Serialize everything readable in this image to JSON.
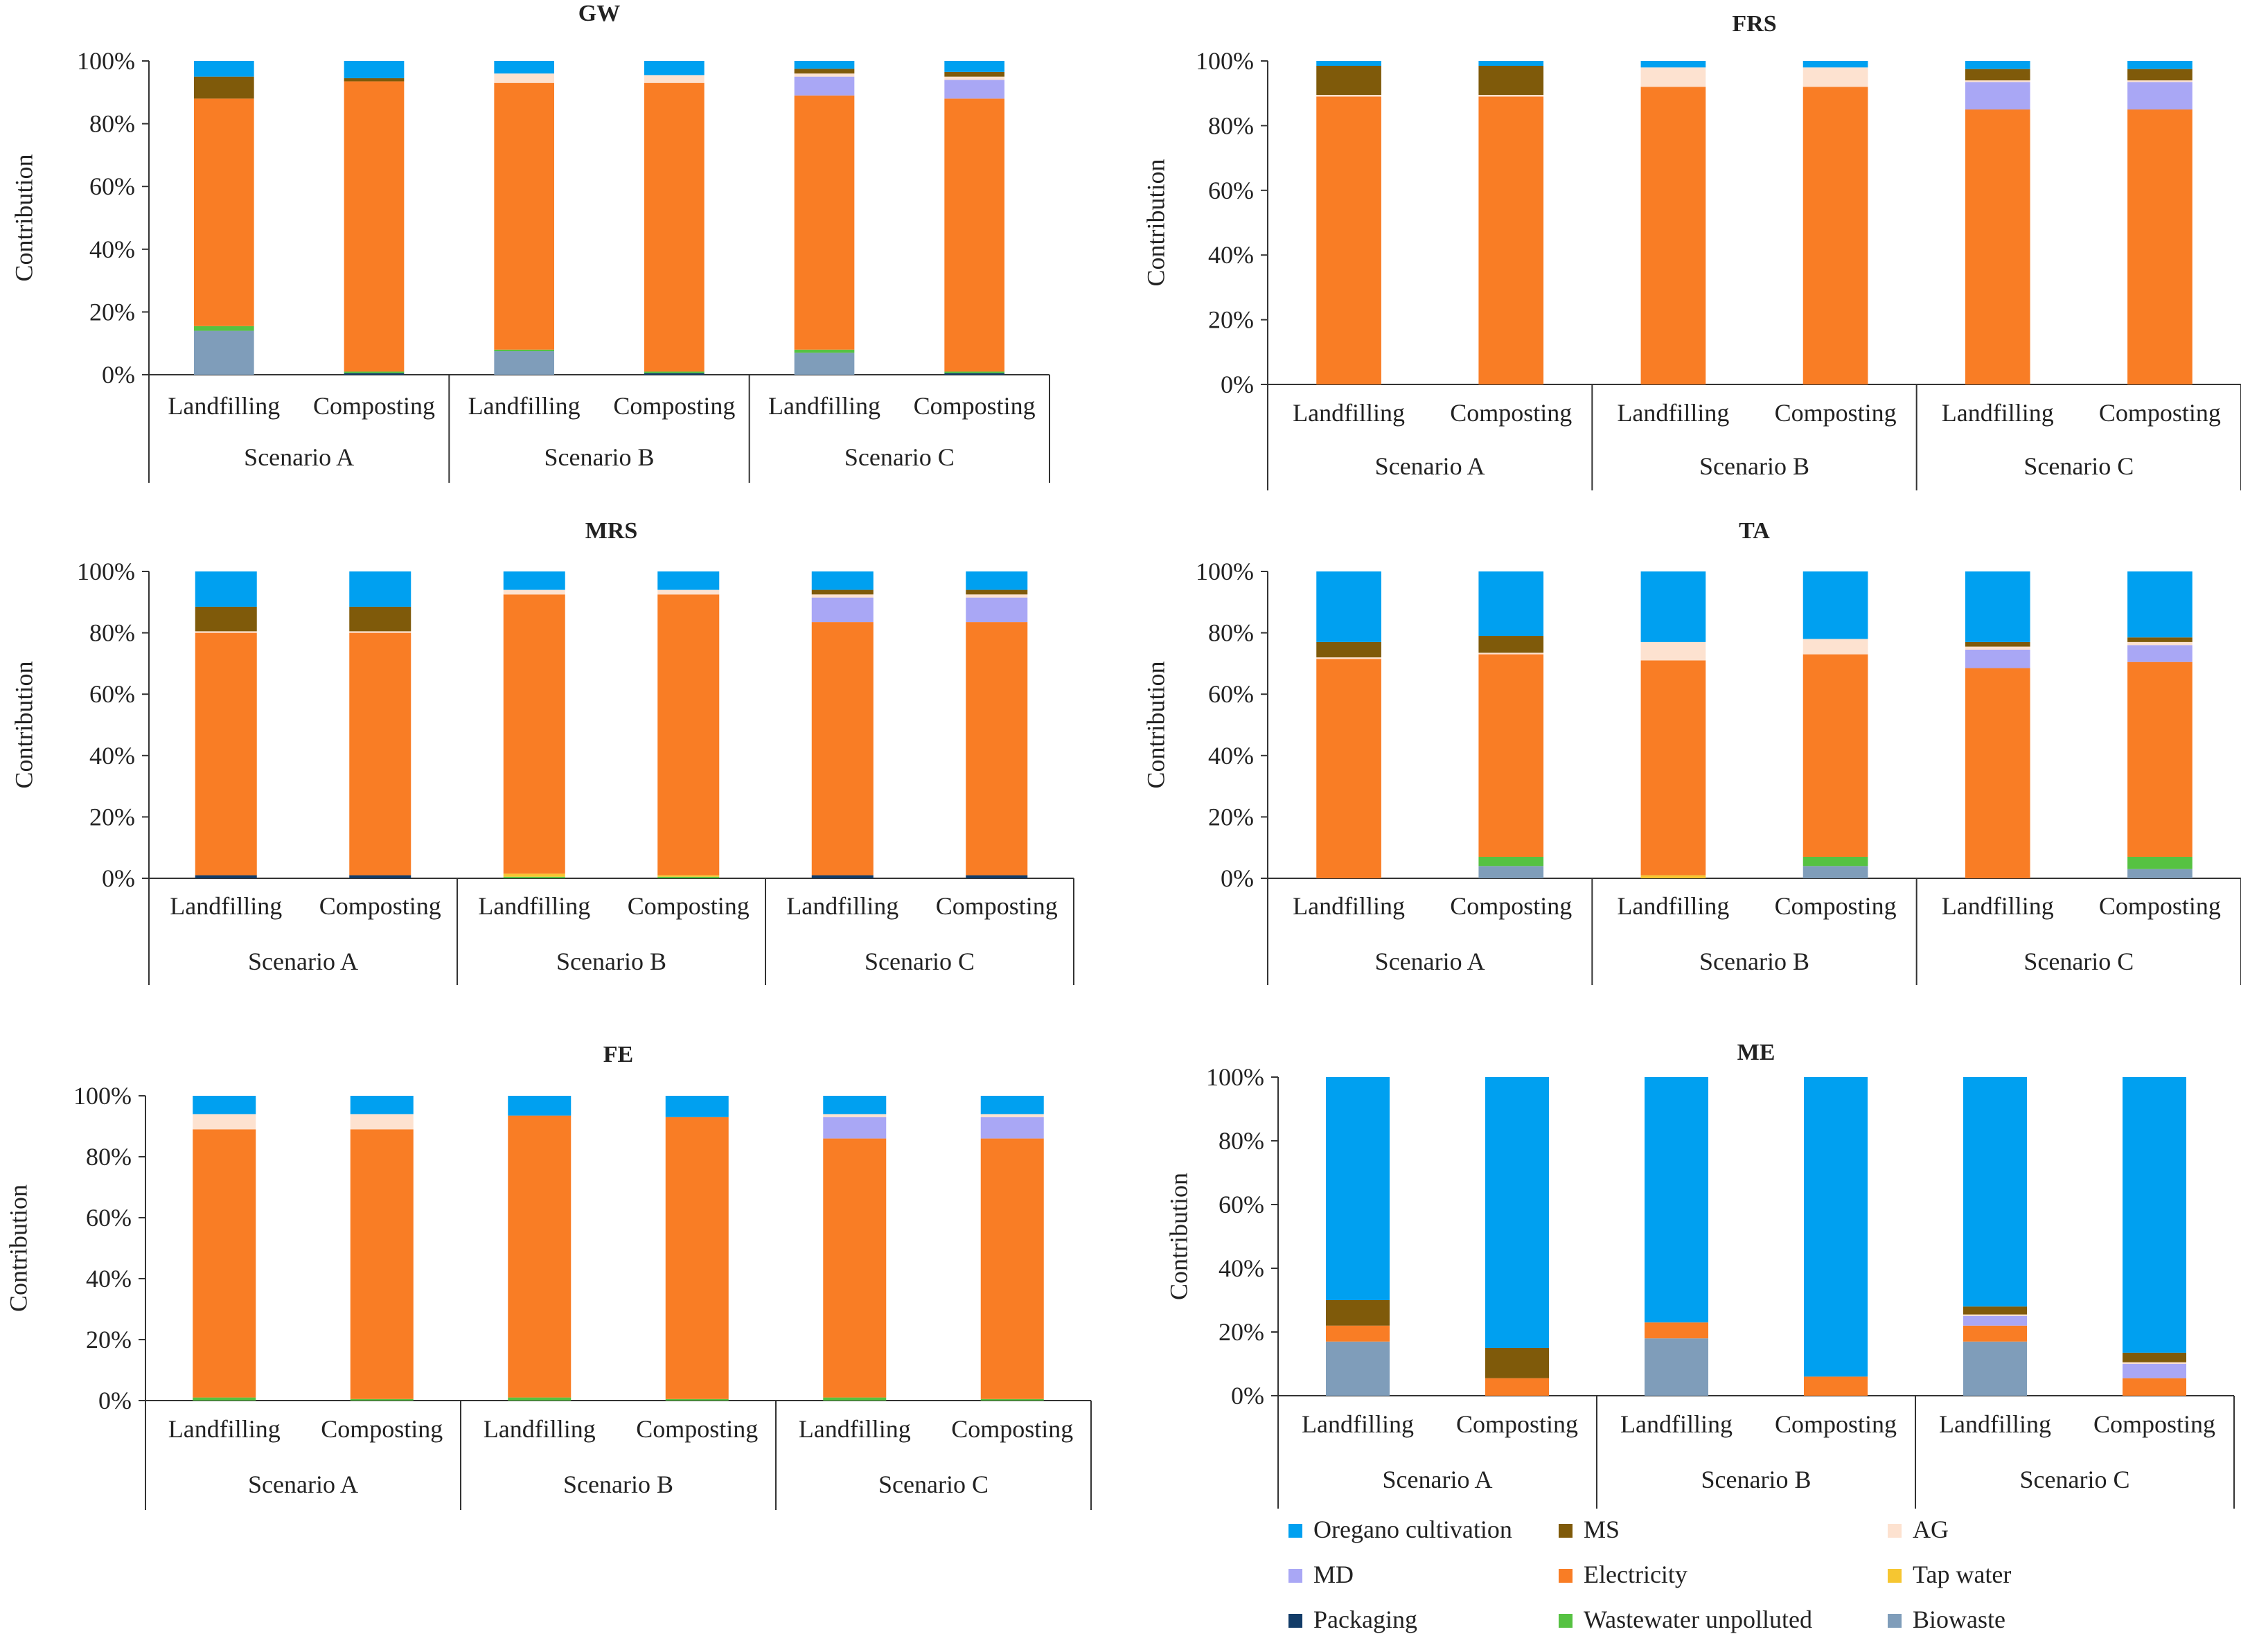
{
  "figure": {
    "ylabel": "Contribution",
    "y_ticks": [
      "0%",
      "20%",
      "40%",
      "60%",
      "80%",
      "100%"
    ],
    "ylim": [
      0,
      100
    ],
    "groups": [
      "Scenario A",
      "Scenario B",
      "Scenario C"
    ],
    "bar_labels": [
      "Landfilling",
      "Composting"
    ]
  },
  "legend": {
    "items": [
      {
        "label": "Oregano cultivation",
        "color": "#00a0f0"
      },
      {
        "label": "MS",
        "color": "#7f5a0a"
      },
      {
        "label": "AG",
        "color": "#fde2d0"
      },
      {
        "label": "MD",
        "color": "#a9a7f5"
      },
      {
        "label": "Electricity",
        "color": "#f97d25"
      },
      {
        "label": "Tap water",
        "color": "#f6c631"
      },
      {
        "label": "Packaging",
        "color": "#123c68"
      },
      {
        "label": "Wastewater unpolluted",
        "color": "#56c242"
      },
      {
        "label": "Biowaste",
        "color": "#7f9dba"
      }
    ]
  },
  "chart_data": [
    {
      "type": "bar",
      "stacked": true,
      "title": "GW",
      "ylabel": "Contribution",
      "ylim": [
        0,
        100
      ],
      "categories": [
        "Scenario A - Landfilling",
        "Scenario A - Composting",
        "Scenario B - Landfilling",
        "Scenario B - Composting",
        "Scenario C - Landfilling",
        "Scenario C - Composting"
      ],
      "series": [
        {
          "name": "Biowaste",
          "values": [
            14,
            0,
            7.5,
            0,
            7,
            0
          ]
        },
        {
          "name": "Packaging",
          "values": [
            0,
            0.5,
            0,
            0.5,
            0,
            0.5
          ]
        },
        {
          "name": "Wastewater unpolluted",
          "values": [
            1.5,
            0.5,
            0.5,
            0.5,
            1,
            0.5
          ]
        },
        {
          "name": "Tap water",
          "values": [
            0,
            0,
            0,
            0,
            0,
            0
          ]
        },
        {
          "name": "Electricity",
          "values": [
            72.5,
            92.5,
            85,
            92,
            81,
            87
          ]
        },
        {
          "name": "MD",
          "values": [
            0,
            0,
            0,
            0,
            6,
            6
          ]
        },
        {
          "name": "AG",
          "values": [
            0,
            0,
            3,
            2.5,
            1,
            1
          ]
        },
        {
          "name": "MS",
          "values": [
            7,
            1,
            0,
            0,
            1.5,
            1.5
          ]
        },
        {
          "name": "Oregano cultivation",
          "values": [
            5,
            5.5,
            4,
            4.5,
            2.5,
            3.5
          ]
        }
      ]
    },
    {
      "type": "bar",
      "stacked": true,
      "title": "FRS",
      "ylabel": "Contribution",
      "ylim": [
        0,
        100
      ],
      "categories": [
        "Scenario A - Landfilling",
        "Scenario A - Composting",
        "Scenario B - Landfilling",
        "Scenario B - Composting",
        "Scenario C - Landfilling",
        "Scenario C - Composting"
      ],
      "series": [
        {
          "name": "Electricity",
          "values": [
            89,
            89,
            92,
            92,
            85,
            85
          ]
        },
        {
          "name": "MD",
          "values": [
            0,
            0,
            0,
            0,
            8.5,
            8.5
          ]
        },
        {
          "name": "AG",
          "values": [
            0.5,
            0.5,
            6,
            6,
            0.5,
            0.5
          ]
        },
        {
          "name": "MS",
          "values": [
            9,
            9,
            0,
            0,
            3.5,
            3.5
          ]
        },
        {
          "name": "Oregano cultivation",
          "values": [
            1.5,
            1.5,
            2,
            2,
            2.5,
            2.5
          ]
        }
      ]
    },
    {
      "type": "bar",
      "stacked": true,
      "title": "MRS",
      "ylabel": "Contribution",
      "ylim": [
        0,
        100
      ],
      "categories": [
        "Scenario A - Landfilling",
        "Scenario A - Composting",
        "Scenario B - Landfilling",
        "Scenario B - Composting",
        "Scenario C - Landfilling",
        "Scenario C - Composting"
      ],
      "series": [
        {
          "name": "Packaging",
          "values": [
            1,
            1,
            0,
            0,
            1,
            1
          ]
        },
        {
          "name": "Wastewater unpolluted",
          "values": [
            0,
            0,
            0.5,
            0.5,
            0,
            0
          ]
        },
        {
          "name": "Tap water",
          "values": [
            0,
            0,
            1,
            0.5,
            0,
            0
          ]
        },
        {
          "name": "Electricity",
          "values": [
            79,
            79,
            91,
            91.5,
            82.5,
            82.5
          ]
        },
        {
          "name": "MD",
          "values": [
            0,
            0,
            0,
            0,
            8,
            8
          ]
        },
        {
          "name": "AG",
          "values": [
            0.5,
            0.5,
            1.5,
            1.5,
            1,
            1
          ]
        },
        {
          "name": "MS",
          "values": [
            8,
            8,
            0,
            0,
            1.5,
            1.5
          ]
        },
        {
          "name": "Oregano cultivation",
          "values": [
            11.5,
            11.5,
            6,
            6,
            6,
            6
          ]
        }
      ]
    },
    {
      "type": "bar",
      "stacked": true,
      "title": "TA",
      "ylabel": "Contribution",
      "ylim": [
        0,
        100
      ],
      "categories": [
        "Scenario A - Landfilling",
        "Scenario A - Composting",
        "Scenario B - Landfilling",
        "Scenario B - Composting",
        "Scenario C - Landfilling",
        "Scenario C - Composting"
      ],
      "series": [
        {
          "name": "Biowaste",
          "values": [
            0,
            4,
            0,
            4,
            0,
            3
          ]
        },
        {
          "name": "Wastewater unpolluted",
          "values": [
            0,
            3,
            0,
            3,
            0,
            4
          ]
        },
        {
          "name": "Tap water",
          "values": [
            0,
            0,
            1,
            0,
            0,
            0
          ]
        },
        {
          "name": "Electricity",
          "values": [
            71.5,
            66,
            70,
            66,
            68.5,
            63.5
          ]
        },
        {
          "name": "MD",
          "values": [
            0,
            0,
            0,
            0,
            6,
            5.5
          ]
        },
        {
          "name": "AG",
          "values": [
            0.5,
            0.5,
            6,
            5,
            1,
            1
          ]
        },
        {
          "name": "MS",
          "values": [
            5,
            5.5,
            0,
            0,
            1.5,
            1.5
          ]
        },
        {
          "name": "Oregano cultivation",
          "values": [
            23,
            21,
            23,
            22,
            23,
            21.5
          ]
        }
      ]
    },
    {
      "type": "bar",
      "stacked": true,
      "title": "FE",
      "ylabel": "Contribution",
      "ylim": [
        0,
        100
      ],
      "categories": [
        "Scenario A - Landfilling",
        "Scenario A - Composting",
        "Scenario B - Landfilling",
        "Scenario B - Composting",
        "Scenario C - Landfilling",
        "Scenario C - Composting"
      ],
      "series": [
        {
          "name": "Wastewater unpolluted",
          "values": [
            1,
            0.5,
            1,
            0.5,
            1,
            0.5
          ]
        },
        {
          "name": "Electricity",
          "values": [
            88,
            88.5,
            92.5,
            92.5,
            85,
            85.5
          ]
        },
        {
          "name": "MD",
          "values": [
            0,
            0,
            0,
            0,
            7,
            7
          ]
        },
        {
          "name": "AG",
          "values": [
            5,
            5,
            0,
            0,
            1,
            1
          ]
        },
        {
          "name": "Oregano cultivation",
          "values": [
            6,
            6,
            6.5,
            7,
            6,
            6
          ]
        }
      ]
    },
    {
      "type": "bar",
      "stacked": true,
      "title": "ME",
      "ylabel": "Contribution",
      "ylim": [
        0,
        100
      ],
      "categories": [
        "Scenario A - Landfilling",
        "Scenario A - Composting",
        "Scenario B - Landfilling",
        "Scenario B - Composting",
        "Scenario C - Landfilling",
        "Scenario C - Composting"
      ],
      "series": [
        {
          "name": "Biowaste",
          "values": [
            17,
            0,
            18,
            0,
            17,
            0
          ]
        },
        {
          "name": "Electricity",
          "values": [
            5,
            5.5,
            5,
            6,
            5,
            5.5
          ]
        },
        {
          "name": "MD",
          "values": [
            0,
            0,
            0,
            0,
            3,
            4.5
          ]
        },
        {
          "name": "AG",
          "values": [
            0,
            0,
            0,
            0,
            0.5,
            0.5
          ]
        },
        {
          "name": "MS",
          "values": [
            8,
            9.5,
            0,
            0,
            2.5,
            3
          ]
        },
        {
          "name": "Oregano cultivation",
          "values": [
            70,
            85,
            77,
            94,
            72,
            86.5
          ]
        }
      ]
    }
  ]
}
